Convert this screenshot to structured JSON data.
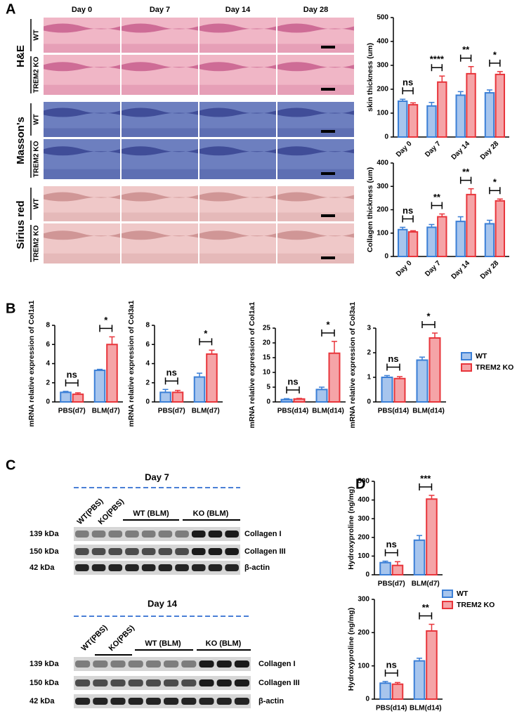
{
  "panels": [
    "A",
    "B",
    "C",
    "D"
  ],
  "histology": {
    "days": [
      "Day 0",
      "Day 7",
      "Day 14",
      "Day 28"
    ],
    "stains": [
      "H&E",
      "Masson's",
      "Sirius red"
    ],
    "genotypes": [
      "WT",
      "TREM2 KO"
    ]
  },
  "blots": [
    {
      "title": "Day 7",
      "lanes": [
        "WT(PBS)",
        "KO(PBS)",
        "WT (BLM)",
        "KO (BLM)"
      ],
      "rows": [
        {
          "size": "139 kDa",
          "protein": "Collagen I"
        },
        {
          "size": "150 kDa",
          "protein": "Collagen III"
        },
        {
          "size": "42 kDa",
          "protein": "β-actin"
        }
      ]
    },
    {
      "title": "Day 14",
      "lanes": [
        "WT(PBS)",
        "KO(PBS)",
        "WT (BLM)",
        "KO (BLM)"
      ],
      "rows": [
        {
          "size": "139 kDa",
          "protein": "Collagen I"
        },
        {
          "size": "150 kDa",
          "protein": "Collagen III"
        },
        {
          "size": "42 kDa",
          "protein": "β-actin"
        }
      ]
    }
  ],
  "chart_data": [
    {
      "type": "bar",
      "ylabel": "skin thickness (um)",
      "categories": [
        "Day 0",
        "Day 7",
        "Day 14",
        "Day 28"
      ],
      "x_label_rotation": 45,
      "series": [
        {
          "name": "WT",
          "color": "#3b7fd6",
          "values": [
            150,
            130,
            175,
            185
          ],
          "errors": [
            8,
            15,
            15,
            12
          ]
        },
        {
          "name": "TREM2 KO",
          "color": "#e8353b",
          "values": [
            135,
            230,
            265,
            262
          ],
          "errors": [
            8,
            25,
            30,
            12
          ]
        }
      ],
      "annotations": [
        "ns",
        "****",
        "**",
        "*"
      ],
      "ylim": [
        0,
        500
      ],
      "yticks": [
        0,
        100,
        200,
        300,
        400,
        500
      ]
    },
    {
      "type": "bar",
      "ylabel": "Collagen thickness (um)",
      "categories": [
        "Day 0",
        "Day 7",
        "Day 14",
        "Day 28"
      ],
      "x_label_rotation": 45,
      "series": [
        {
          "name": "WT",
          "color": "#3b7fd6",
          "values": [
            115,
            125,
            150,
            140
          ],
          "errors": [
            10,
            12,
            20,
            15
          ]
        },
        {
          "name": "TREM2 KO",
          "color": "#e8353b",
          "values": [
            105,
            170,
            265,
            238
          ],
          "errors": [
            5,
            12,
            25,
            8
          ]
        }
      ],
      "annotations": [
        "ns",
        "**",
        "**",
        "*"
      ],
      "ylim": [
        0,
        400
      ],
      "yticks": [
        0,
        100,
        200,
        300,
        400
      ]
    },
    {
      "type": "bar",
      "ylabel": "mRNA relative expression of Col1a1",
      "categories": [
        "PBS(d7)",
        "BLM(d7)"
      ],
      "series": [
        {
          "name": "WT",
          "color": "#3b7fd6",
          "values": [
            1.0,
            3.3
          ],
          "errors": [
            0.1,
            0.1
          ]
        },
        {
          "name": "TREM2 KO",
          "color": "#e8353b",
          "values": [
            0.8,
            6.0
          ],
          "errors": [
            0.15,
            0.8
          ]
        }
      ],
      "annotations": [
        "ns",
        "*"
      ],
      "ylim": [
        0,
        8
      ],
      "yticks": [
        0,
        2,
        4,
        6,
        8
      ]
    },
    {
      "type": "bar",
      "ylabel": "mRNA relative expression of Col3a1",
      "categories": [
        "PBS(d7)",
        "BLM(d7)"
      ],
      "series": [
        {
          "name": "WT",
          "color": "#3b7fd6",
          "values": [
            1.0,
            2.6
          ],
          "errors": [
            0.3,
            0.4
          ]
        },
        {
          "name": "TREM2 KO",
          "color": "#e8353b",
          "values": [
            1.0,
            5.0
          ],
          "errors": [
            0.2,
            0.4
          ]
        }
      ],
      "annotations": [
        "ns",
        "*"
      ],
      "ylim": [
        0,
        8
      ],
      "yticks": [
        0,
        2,
        4,
        6,
        8
      ]
    },
    {
      "type": "bar",
      "ylabel": "mRNA relative expression of Col1a1",
      "categories": [
        "PBS(d14)",
        "BLM(d14)"
      ],
      "series": [
        {
          "name": "WT",
          "color": "#3b7fd6",
          "values": [
            0.8,
            4.2
          ],
          "errors": [
            0.3,
            0.8
          ]
        },
        {
          "name": "TREM2 KO",
          "color": "#e8353b",
          "values": [
            1.0,
            16.5
          ],
          "errors": [
            0.2,
            4
          ]
        }
      ],
      "annotations": [
        "ns",
        "*"
      ],
      "ylim": [
        0,
        25
      ],
      "yticks": [
        0,
        5,
        10,
        15,
        20,
        25
      ]
    },
    {
      "type": "bar",
      "ylabel": "mRNA relative expression of Col3a1",
      "categories": [
        "PBS(d14)",
        "BLM(d14)"
      ],
      "series": [
        {
          "name": "WT",
          "color": "#3b7fd6",
          "values": [
            1.0,
            1.7
          ],
          "errors": [
            0.07,
            0.12
          ]
        },
        {
          "name": "TREM2 KO",
          "color": "#e8353b",
          "values": [
            0.95,
            2.6
          ],
          "errors": [
            0.08,
            0.2
          ]
        }
      ],
      "annotations": [
        "ns",
        "*"
      ],
      "ylim": [
        0,
        3
      ],
      "yticks": [
        0,
        1,
        2,
        3
      ],
      "legend": true
    },
    {
      "type": "bar",
      "ylabel": "Hydroxyproline (ng/mg)",
      "categories": [
        "PBS(d7)",
        "BLM(d7)"
      ],
      "series": [
        {
          "name": "WT",
          "color": "#3b7fd6",
          "values": [
            65,
            185
          ],
          "errors": [
            8,
            25
          ]
        },
        {
          "name": "TREM2 KO",
          "color": "#e8353b",
          "values": [
            50,
            405
          ],
          "errors": [
            20,
            20
          ]
        }
      ],
      "annotations": [
        "ns",
        "***"
      ],
      "ylim": [
        0,
        500
      ],
      "yticks": [
        0,
        100,
        200,
        300,
        400,
        500
      ]
    },
    {
      "type": "bar",
      "ylabel": "Hydroxyproline (ng/mg)",
      "categories": [
        "PBS(d14)",
        "BLM(d14)"
      ],
      "series": [
        {
          "name": "WT",
          "color": "#3b7fd6",
          "values": [
            48,
            115
          ],
          "errors": [
            5,
            8
          ]
        },
        {
          "name": "TREM2 KO",
          "color": "#e8353b",
          "values": [
            45,
            205
          ],
          "errors": [
            5,
            20
          ]
        }
      ],
      "annotations": [
        "ns",
        "**"
      ],
      "ylim": [
        0,
        300
      ],
      "yticks": [
        0,
        100,
        200,
        300
      ],
      "legend": true
    }
  ]
}
